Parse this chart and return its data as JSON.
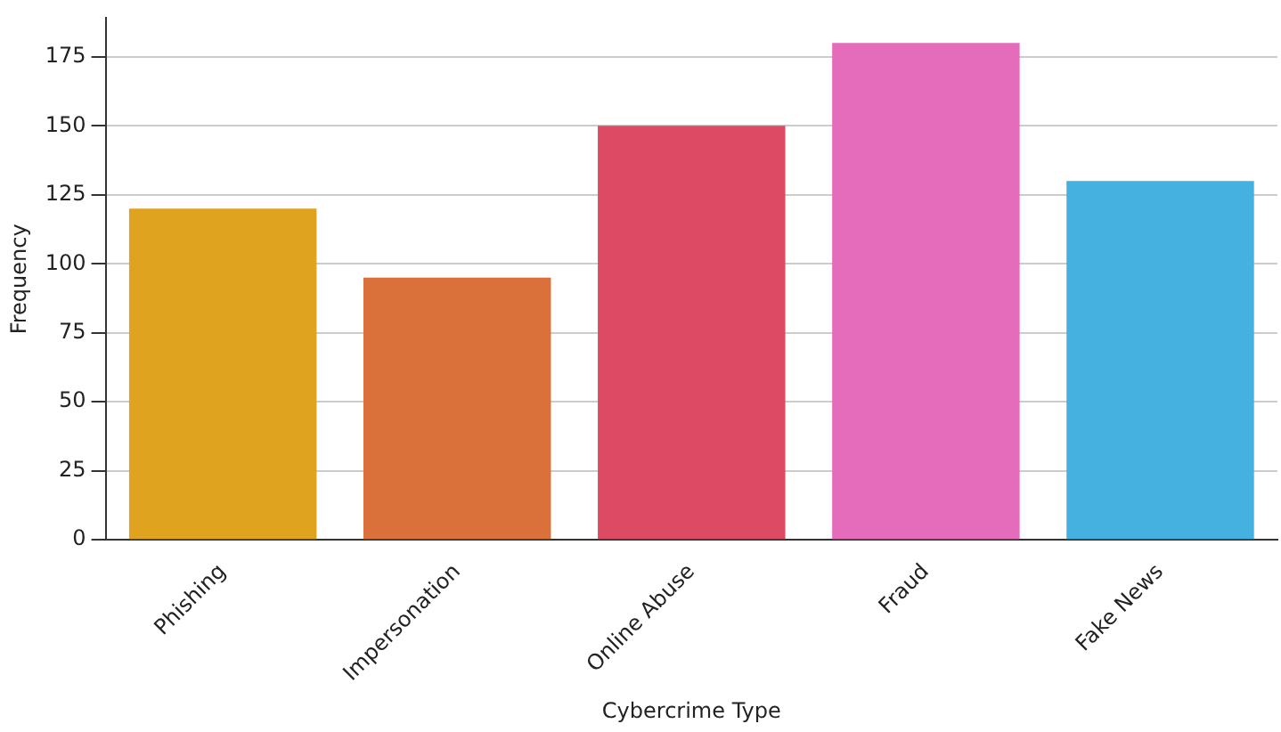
{
  "chart_data": {
    "type": "bar",
    "xlabel": "Cybercrime Type",
    "ylabel": "Frequency",
    "categories": [
      "Phishing",
      "Impersonation",
      "Online Abuse",
      "Fraud",
      "Fake News"
    ],
    "values": [
      120,
      95,
      150,
      180,
      130
    ],
    "colors": [
      "#e0a320",
      "#db713a",
      "#dc4b63",
      "#e56cba",
      "#44b1e0"
    ],
    "ylim": [
      0,
      189
    ],
    "yticks": [
      0,
      25,
      50,
      75,
      100,
      125,
      150,
      175
    ],
    "grid": "y",
    "legend": false
  }
}
